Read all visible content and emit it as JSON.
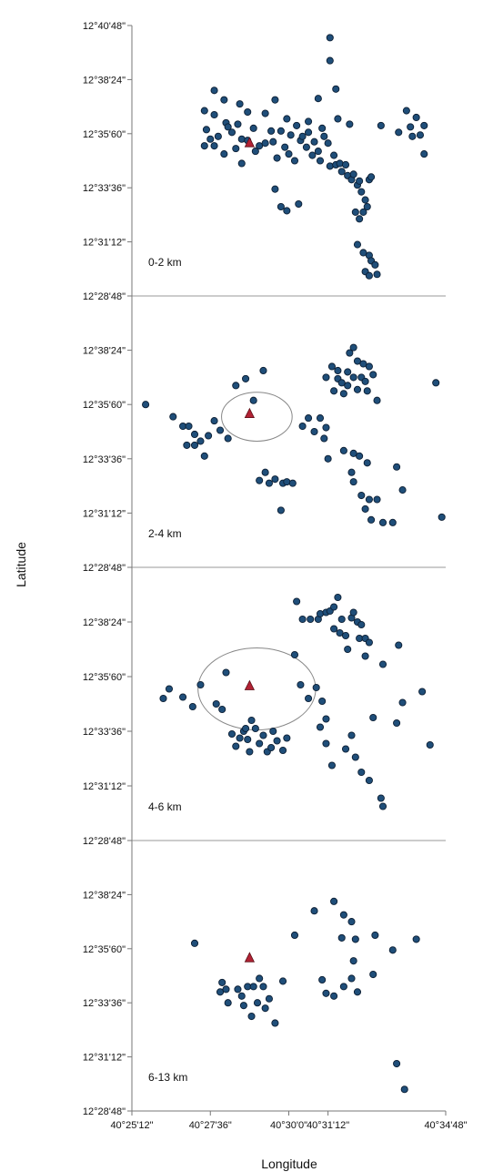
{
  "chart_data": {
    "type": "scatter",
    "xlabel": "Longitude",
    "ylabel": "Latitude",
    "x_ticks": [
      "40°25'12\"",
      "40°27'36\"",
      "40°30'0\"",
      "40°31'12\"",
      "40°34'48\""
    ],
    "x_tick_values": [
      40.42,
      40.46,
      40.5,
      40.52,
      40.58
    ],
    "y_ticks": [
      "12°40'48\"",
      "12°38'24\"",
      "12°35'60\"",
      "12°33'36\"",
      "12°31'12\"",
      "12°28'48\""
    ],
    "y_tick_values": [
      12.68,
      12.64,
      12.6,
      12.56,
      12.52,
      12.48
    ],
    "xlim": [
      40.42,
      40.58
    ],
    "volcano": {
      "lon": 40.48,
      "lat": 12.593
    },
    "panels": [
      {
        "label": "0-2 km",
        "show_top_tick": true,
        "ring": null,
        "points": [
          [
            40.521,
            12.671
          ],
          [
            40.521,
            12.654
          ],
          [
            40.524,
            12.633
          ],
          [
            40.515,
            12.626
          ],
          [
            40.56,
            12.617
          ],
          [
            40.562,
            12.605
          ],
          [
            40.565,
            12.612
          ],
          [
            40.569,
            12.606
          ],
          [
            40.567,
            12.599
          ],
          [
            40.563,
            12.598
          ],
          [
            40.556,
            12.601
          ],
          [
            40.547,
            12.606
          ],
          [
            40.569,
            12.585
          ],
          [
            40.525,
            12.611
          ],
          [
            40.531,
            12.607
          ],
          [
            40.462,
            12.632
          ],
          [
            40.467,
            12.625
          ],
          [
            40.475,
            12.622
          ],
          [
            40.493,
            12.625
          ],
          [
            40.488,
            12.615
          ],
          [
            40.479,
            12.616
          ],
          [
            40.462,
            12.614
          ],
          [
            40.468,
            12.608
          ],
          [
            40.457,
            12.617
          ],
          [
            40.458,
            12.603
          ],
          [
            40.464,
            12.598
          ],
          [
            40.471,
            12.601
          ],
          [
            40.482,
            12.604
          ],
          [
            40.476,
            12.596
          ],
          [
            40.485,
            12.591
          ],
          [
            40.473,
            12.589
          ],
          [
            40.462,
            12.591
          ],
          [
            40.457,
            12.591
          ],
          [
            40.467,
            12.585
          ],
          [
            40.476,
            12.578
          ],
          [
            40.479,
            12.595
          ],
          [
            40.483,
            12.587
          ],
          [
            40.488,
            12.593
          ],
          [
            40.492,
            12.594
          ],
          [
            40.491,
            12.602
          ],
          [
            40.496,
            12.602
          ],
          [
            40.499,
            12.611
          ],
          [
            40.501,
            12.599
          ],
          [
            40.498,
            12.59
          ],
          [
            40.494,
            12.582
          ],
          [
            40.5,
            12.585
          ],
          [
            40.503,
            12.58
          ],
          [
            40.506,
            12.595
          ],
          [
            40.509,
            12.59
          ],
          [
            40.51,
            12.601
          ],
          [
            40.513,
            12.594
          ],
          [
            40.515,
            12.587
          ],
          [
            40.518,
            12.598
          ],
          [
            40.52,
            12.593
          ],
          [
            40.516,
            12.58
          ],
          [
            40.521,
            12.576
          ],
          [
            40.523,
            12.584
          ],
          [
            40.524,
            12.577
          ],
          [
            40.526,
            12.578
          ],
          [
            40.527,
            12.572
          ],
          [
            40.529,
            12.577
          ],
          [
            40.53,
            12.569
          ],
          [
            40.532,
            12.566
          ],
          [
            40.533,
            12.57
          ],
          [
            40.535,
            12.562
          ],
          [
            40.536,
            12.565
          ],
          [
            40.537,
            12.557
          ],
          [
            40.539,
            12.551
          ],
          [
            40.541,
            12.566
          ],
          [
            40.542,
            12.568
          ],
          [
            40.54,
            12.546
          ],
          [
            40.538,
            12.542
          ],
          [
            40.536,
            12.537
          ],
          [
            40.534,
            12.542
          ],
          [
            40.535,
            12.518
          ],
          [
            40.538,
            12.512
          ],
          [
            40.541,
            12.51
          ],
          [
            40.542,
            12.506
          ],
          [
            40.539,
            12.498
          ],
          [
            40.541,
            12.495
          ],
          [
            40.545,
            12.496
          ],
          [
            40.544,
            12.503
          ],
          [
            40.493,
            12.559
          ],
          [
            40.496,
            12.546
          ],
          [
            40.499,
            12.543
          ],
          [
            40.505,
            12.548
          ],
          [
            40.51,
            12.609
          ],
          [
            40.517,
            12.604
          ],
          [
            40.504,
            12.606
          ],
          [
            40.507,
            12.598
          ],
          [
            40.512,
            12.584
          ],
          [
            40.46,
            12.596
          ],
          [
            40.469,
            12.605
          ],
          [
            40.474,
            12.607
          ]
        ]
      },
      {
        "label": "2-4 km",
        "show_top_tick": false,
        "ring": 0.018,
        "points": [
          [
            40.427,
            12.6
          ],
          [
            40.441,
            12.591
          ],
          [
            40.446,
            12.584
          ],
          [
            40.449,
            12.584
          ],
          [
            40.452,
            12.578
          ],
          [
            40.455,
            12.573
          ],
          [
            40.459,
            12.577
          ],
          [
            40.452,
            12.57
          ],
          [
            40.457,
            12.562
          ],
          [
            40.448,
            12.57
          ],
          [
            40.462,
            12.588
          ],
          [
            40.465,
            12.581
          ],
          [
            40.469,
            12.575
          ],
          [
            40.473,
            12.614
          ],
          [
            40.478,
            12.619
          ],
          [
            40.482,
            12.603
          ],
          [
            40.487,
            12.625
          ],
          [
            40.485,
            12.544
          ],
          [
            40.488,
            12.55
          ],
          [
            40.49,
            12.542
          ],
          [
            40.493,
            12.545
          ],
          [
            40.497,
            12.542
          ],
          [
            40.499,
            12.543
          ],
          [
            40.502,
            12.542
          ],
          [
            40.496,
            12.522
          ],
          [
            40.507,
            12.584
          ],
          [
            40.51,
            12.59
          ],
          [
            40.513,
            12.58
          ],
          [
            40.516,
            12.59
          ],
          [
            40.519,
            12.583
          ],
          [
            40.518,
            12.575
          ],
          [
            40.519,
            12.62
          ],
          [
            40.522,
            12.628
          ],
          [
            40.525,
            12.619
          ],
          [
            40.523,
            12.61
          ],
          [
            40.528,
            12.608
          ],
          [
            40.53,
            12.624
          ],
          [
            40.53,
            12.614
          ],
          [
            40.533,
            12.62
          ],
          [
            40.535,
            12.611
          ],
          [
            40.537,
            12.62
          ],
          [
            40.531,
            12.638
          ],
          [
            40.533,
            12.642
          ],
          [
            40.535,
            12.632
          ],
          [
            40.538,
            12.63
          ],
          [
            40.541,
            12.628
          ],
          [
            40.543,
            12.622
          ],
          [
            40.539,
            12.617
          ],
          [
            40.54,
            12.61
          ],
          [
            40.545,
            12.603
          ],
          [
            40.528,
            12.566
          ],
          [
            40.533,
            12.564
          ],
          [
            40.536,
            12.562
          ],
          [
            40.54,
            12.557
          ],
          [
            40.532,
            12.55
          ],
          [
            40.533,
            12.543
          ],
          [
            40.537,
            12.533
          ],
          [
            40.539,
            12.523
          ],
          [
            40.541,
            12.53
          ],
          [
            40.542,
            12.515
          ],
          [
            40.545,
            12.53
          ],
          [
            40.548,
            12.513
          ],
          [
            40.553,
            12.513
          ],
          [
            40.555,
            12.554
          ],
          [
            40.558,
            12.537
          ],
          [
            40.575,
            12.616
          ],
          [
            40.578,
            12.517
          ],
          [
            40.525,
            12.625
          ],
          [
            40.527,
            12.616
          ],
          [
            40.52,
            12.56
          ]
        ]
      },
      {
        "label": "4-6 km",
        "show_top_tick": false,
        "ring": 0.03,
        "points": [
          [
            40.504,
            12.655
          ],
          [
            40.507,
            12.642
          ],
          [
            40.511,
            12.642
          ],
          [
            40.515,
            12.642
          ],
          [
            40.516,
            12.646
          ],
          [
            40.519,
            12.647
          ],
          [
            40.521,
            12.648
          ],
          [
            40.523,
            12.651
          ],
          [
            40.525,
            12.658
          ],
          [
            40.523,
            12.635
          ],
          [
            40.526,
            12.632
          ],
          [
            40.527,
            12.642
          ],
          [
            40.529,
            12.63
          ],
          [
            40.53,
            12.62
          ],
          [
            40.532,
            12.643
          ],
          [
            40.533,
            12.647
          ],
          [
            40.535,
            12.64
          ],
          [
            40.536,
            12.628
          ],
          [
            40.537,
            12.638
          ],
          [
            40.539,
            12.628
          ],
          [
            40.541,
            12.625
          ],
          [
            40.539,
            12.615
          ],
          [
            40.548,
            12.609
          ],
          [
            40.556,
            12.623
          ],
          [
            40.503,
            12.616
          ],
          [
            40.506,
            12.594
          ],
          [
            40.51,
            12.584
          ],
          [
            40.514,
            12.592
          ],
          [
            40.517,
            12.582
          ],
          [
            40.519,
            12.569
          ],
          [
            40.516,
            12.563
          ],
          [
            40.519,
            12.551
          ],
          [
            40.522,
            12.535
          ],
          [
            40.529,
            12.547
          ],
          [
            40.532,
            12.557
          ],
          [
            40.534,
            12.541
          ],
          [
            40.537,
            12.53
          ],
          [
            40.541,
            12.524
          ],
          [
            40.547,
            12.511
          ],
          [
            40.548,
            12.505
          ],
          [
            40.543,
            12.57
          ],
          [
            40.555,
            12.566
          ],
          [
            40.558,
            12.581
          ],
          [
            40.572,
            12.55
          ],
          [
            40.568,
            12.589
          ],
          [
            40.436,
            12.584
          ],
          [
            40.439,
            12.591
          ],
          [
            40.446,
            12.585
          ],
          [
            40.451,
            12.578
          ],
          [
            40.455,
            12.594
          ],
          [
            40.463,
            12.58
          ],
          [
            40.466,
            12.576
          ],
          [
            40.468,
            12.603
          ],
          [
            40.471,
            12.558
          ],
          [
            40.475,
            12.555
          ],
          [
            40.473,
            12.549
          ],
          [
            40.477,
            12.56
          ],
          [
            40.479,
            12.554
          ],
          [
            40.48,
            12.545
          ],
          [
            40.483,
            12.562
          ],
          [
            40.485,
            12.551
          ],
          [
            40.487,
            12.557
          ],
          [
            40.489,
            12.545
          ],
          [
            40.491,
            12.548
          ],
          [
            40.492,
            12.56
          ],
          [
            40.494,
            12.553
          ],
          [
            40.497,
            12.546
          ],
          [
            40.499,
            12.555
          ],
          [
            40.481,
            12.568
          ],
          [
            40.478,
            12.562
          ]
        ]
      },
      {
        "label": "6-13 km",
        "show_top_tick": false,
        "ring": null,
        "points": [
          [
            40.452,
            12.604
          ],
          [
            40.465,
            12.568
          ],
          [
            40.466,
            12.575
          ],
          [
            40.468,
            12.57
          ],
          [
            40.469,
            12.56
          ],
          [
            40.474,
            12.57
          ],
          [
            40.476,
            12.565
          ],
          [
            40.477,
            12.558
          ],
          [
            40.479,
            12.572
          ],
          [
            40.481,
            12.55
          ],
          [
            40.482,
            12.572
          ],
          [
            40.484,
            12.56
          ],
          [
            40.485,
            12.578
          ],
          [
            40.487,
            12.572
          ],
          [
            40.488,
            12.556
          ],
          [
            40.49,
            12.563
          ],
          [
            40.493,
            12.545
          ],
          [
            40.497,
            12.576
          ],
          [
            40.503,
            12.61
          ],
          [
            40.513,
            12.628
          ],
          [
            40.517,
            12.577
          ],
          [
            40.519,
            12.567
          ],
          [
            40.523,
            12.635
          ],
          [
            40.528,
            12.625
          ],
          [
            40.527,
            12.608
          ],
          [
            40.532,
            12.62
          ],
          [
            40.534,
            12.607
          ],
          [
            40.533,
            12.591
          ],
          [
            40.535,
            12.568
          ],
          [
            40.532,
            12.578
          ],
          [
            40.528,
            12.572
          ],
          [
            40.523,
            12.565
          ],
          [
            40.543,
            12.581
          ],
          [
            40.544,
            12.61
          ],
          [
            40.553,
            12.599
          ],
          [
            40.555,
            12.515
          ],
          [
            40.559,
            12.496
          ],
          [
            40.565,
            12.607
          ]
        ]
      }
    ]
  }
}
